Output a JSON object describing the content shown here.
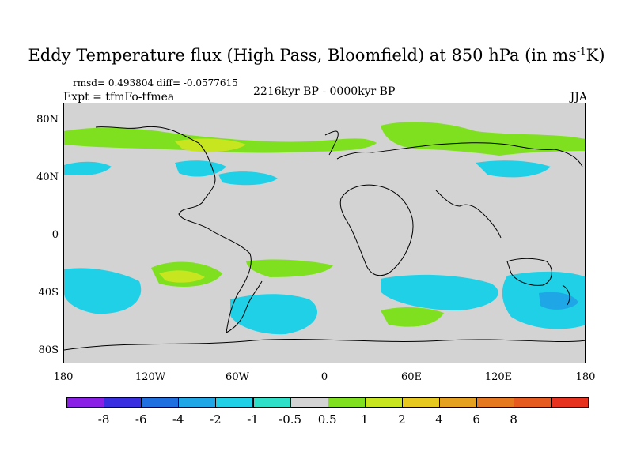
{
  "title": "Eddy Temperature flux (High Pass, Bloomfield) at 850 hPa (in ms",
  "title_sup": "-1",
  "title_end": "K)",
  "stats": "rmsd= 0.493804 diff= -0.0577615",
  "experiment": "Expt = tfmFo-tfmea",
  "period": "2216kyr BP - 0000kyr BP",
  "season": "JJA",
  "y_ticks": [
    "80N",
    "40N",
    "0",
    "40S",
    "80S"
  ],
  "x_ticks": [
    "180",
    "120W",
    "60W",
    "0",
    "60E",
    "120E",
    "180"
  ],
  "colorbar": {
    "colors": [
      "#8a1fe6",
      "#3a2fe0",
      "#1f6fe0",
      "#1fa6e6",
      "#1fd0e6",
      "#2ee0c8",
      "#d3d3d3",
      "#7fe01f",
      "#c8e61f",
      "#e6c81f",
      "#e6a01f",
      "#e6781f",
      "#e65a1f",
      "#e6321f"
    ],
    "labels": [
      "-8",
      "-6",
      "-4",
      "-2",
      "-1",
      "-0.5",
      "0.5",
      "1",
      "2",
      "4",
      "6",
      "8"
    ]
  }
}
